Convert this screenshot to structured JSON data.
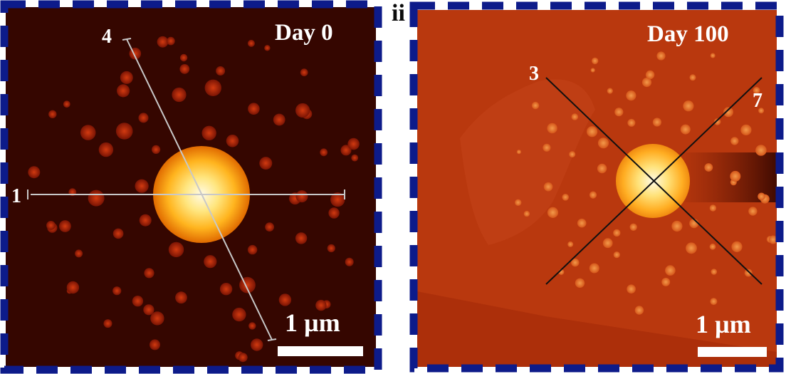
{
  "panels": [
    {
      "label": "",
      "day_label": "Day 0",
      "scale_label": "1 µm",
      "profile_numbers": [
        "4",
        "1"
      ]
    },
    {
      "label": "ii",
      "day_label": "Day 100",
      "scale_label": "1 µm",
      "profile_numbers": [
        "3",
        "7"
      ]
    }
  ],
  "colors": {
    "frame": "#0d1b8a",
    "panel1_bg": "#3a0800",
    "panel2_bg": "#b8360c"
  }
}
